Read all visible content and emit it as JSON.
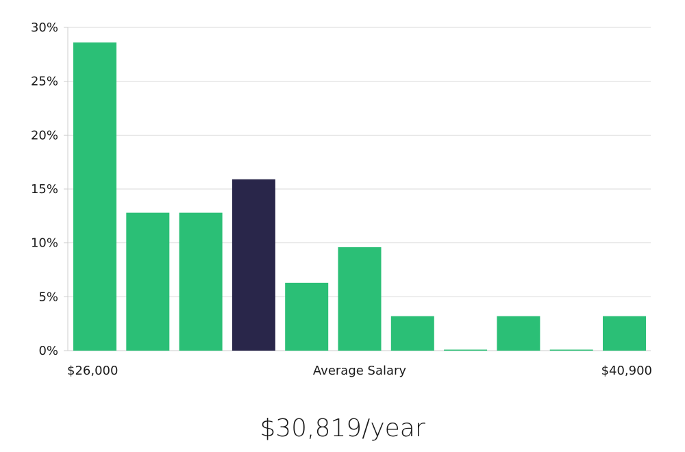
{
  "chart_data": {
    "type": "bar",
    "values": [
      28.6,
      12.8,
      12.8,
      15.9,
      6.3,
      9.6,
      3.2,
      0,
      3.2,
      0,
      3.2
    ],
    "highlight_index": 3,
    "ylim": [
      0,
      30
    ],
    "yticks": [
      "0%",
      "5%",
      "10%",
      "15%",
      "20%",
      "25%",
      "30%"
    ],
    "ytick_values": [
      0,
      5,
      10,
      15,
      20,
      25,
      30
    ],
    "x_min_label": "$26,000",
    "x_max_label": "$40,900",
    "xlabel": "Average Salary",
    "grid": true,
    "colors": {
      "bar": "#2bbf76",
      "highlight": "#29264a",
      "grid": "#d9d9d9",
      "axis": "#cccccc"
    }
  },
  "summary": {
    "salary": "$30,819/year"
  }
}
